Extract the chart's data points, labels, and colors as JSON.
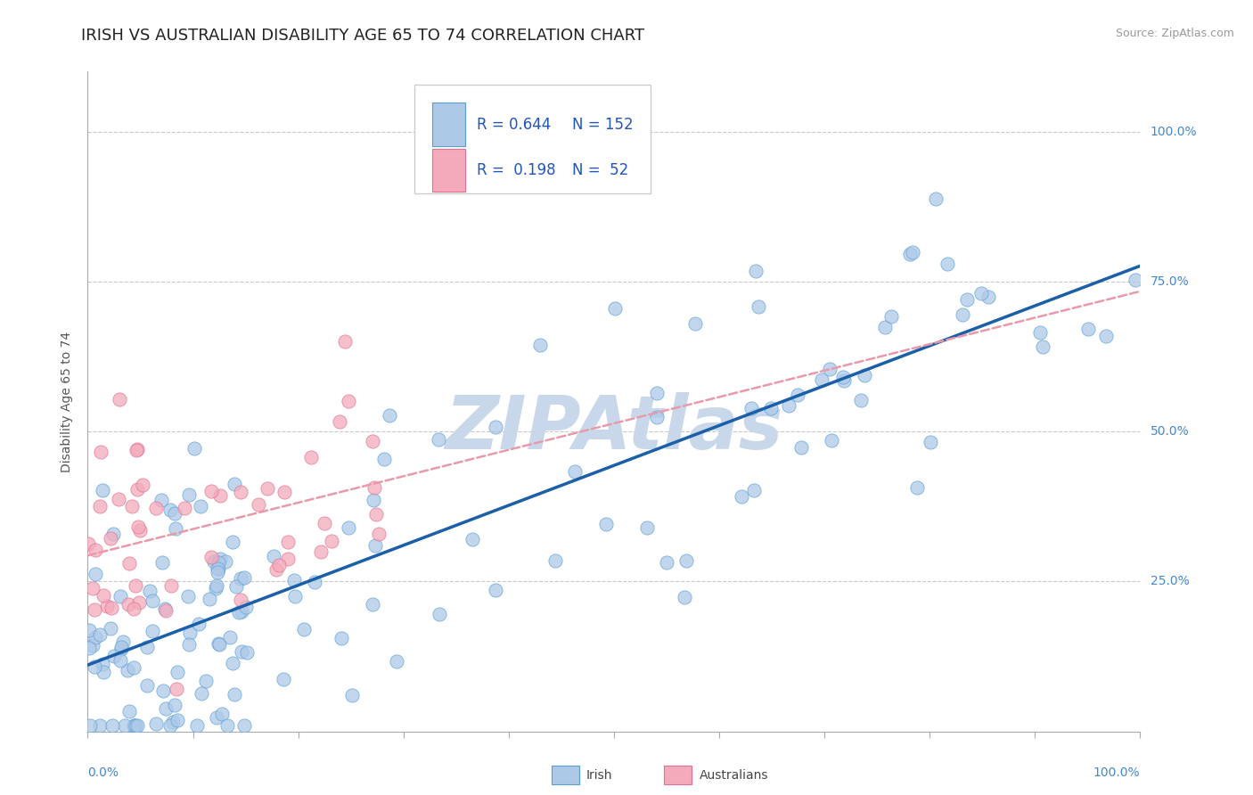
{
  "title": "IRISH VS AUSTRALIAN DISABILITY AGE 65 TO 74 CORRELATION CHART",
  "source_text": "Source: ZipAtlas.com",
  "ylabel": "Disability Age 65 to 74",
  "y_tick_labels": [
    "25.0%",
    "50.0%",
    "75.0%",
    "100.0%"
  ],
  "y_tick_positions": [
    0.25,
    0.5,
    0.75,
    1.0
  ],
  "legend_irish_R": "R = 0.644",
  "legend_irish_N": "N = 152",
  "legend_aus_R": "R =  0.198",
  "legend_aus_N": "N =  52",
  "irish_color": "#adc9e8",
  "irish_edge_color": "#5a9fd4",
  "australian_color": "#f4aabb",
  "australian_edge_color": "#e07090",
  "irish_line_color": "#1a5fa8",
  "australian_line_color": "#e89aaa",
  "watermark_text": "ZIPAtlas",
  "watermark_color": "#c8d8ea",
  "title_fontsize": 13,
  "axis_label_fontsize": 10,
  "tick_label_fontsize": 10,
  "legend_fontsize": 12,
  "legend_color": "#2255bb",
  "irish_R": 0.644,
  "australian_R": 0.198,
  "irish_N": 152,
  "australian_N": 52,
  "xlim": [
    0.0,
    1.0
  ],
  "ylim": [
    0.0,
    1.1
  ],
  "background_color": "#ffffff",
  "grid_color": "#bbbbbb",
  "source_color": "#999999",
  "ylabel_color": "#555555",
  "tick_color": "#4488cc"
}
